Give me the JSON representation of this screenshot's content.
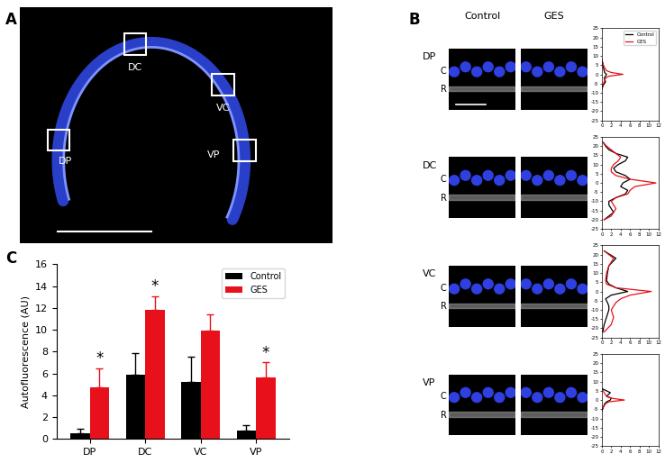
{
  "panel_labels": [
    "A",
    "B",
    "C"
  ],
  "panel_a": {
    "regions": [
      "DP",
      "DC",
      "VC",
      "VP"
    ]
  },
  "panel_b": {
    "columns": [
      "Control",
      "GES"
    ],
    "layer_labels": [
      "C",
      "R"
    ]
  },
  "chart_data": [
    {
      "type": "bar",
      "categories": [
        "DP",
        "DC",
        "VC",
        "VP"
      ],
      "y_label": "Autofluorescence (AU)",
      "ylim": [
        0,
        16
      ],
      "yticks": [
        0,
        2,
        4,
        6,
        8,
        10,
        12,
        14,
        16
      ],
      "legend": "upper right",
      "series": [
        {
          "name": "Control",
          "color": "#000000",
          "values": [
            0.5,
            5.9,
            5.2,
            0.8
          ],
          "errors": [
            0.4,
            2.0,
            2.3,
            0.5
          ]
        },
        {
          "name": "GES",
          "color": "#e8101a",
          "values": [
            4.7,
            11.8,
            9.9,
            5.6
          ],
          "errors": [
            1.8,
            1.3,
            1.5,
            1.4
          ]
        }
      ],
      "annotations": [
        {
          "text": "*",
          "category": "DP",
          "series": "GES"
        },
        {
          "text": "*",
          "category": "DC",
          "series": "GES"
        },
        {
          "text": "*",
          "category": "VP",
          "series": "GES"
        }
      ]
    },
    {
      "type": "line",
      "title": "DP",
      "orientation": "horizontal",
      "legend": "upper right",
      "xlim": [
        0,
        12
      ],
      "xticks": [
        0,
        2,
        4,
        6,
        8,
        10,
        12
      ],
      "ylim": [
        -25,
        25
      ],
      "yticks": [
        -25,
        -20,
        -15,
        -10,
        -5,
        0,
        5,
        10,
        15,
        20,
        25
      ],
      "y": [
        -8,
        -6,
        -4,
        -2,
        -1,
        0,
        1,
        2,
        4,
        6,
        8
      ],
      "series": [
        {
          "name": "Control",
          "color": "#000000",
          "values": [
            0,
            0.3,
            0.8,
            0.5,
            0.8,
            1.0,
            0.6,
            0.5,
            0.3,
            0.2,
            0
          ]
        },
        {
          "name": "GES",
          "color": "#e8101a",
          "values": [
            0,
            0.2,
            0.5,
            0.8,
            1.5,
            4.5,
            2.0,
            1.0,
            0.5,
            0.2,
            0
          ]
        }
      ]
    },
    {
      "type": "line",
      "title": "DC",
      "orientation": "horizontal",
      "xlim": [
        0,
        12
      ],
      "xticks": [
        0,
        2,
        4,
        6,
        8,
        10,
        12
      ],
      "ylim": [
        -25,
        25
      ],
      "yticks": [
        -25,
        -20,
        -15,
        -10,
        -5,
        0,
        5,
        10,
        15,
        20,
        25
      ],
      "y": [
        -20,
        -18,
        -16,
        -14,
        -12,
        -10,
        -8,
        -6,
        -4,
        -2,
        0,
        2,
        4,
        6,
        8,
        10,
        12,
        14,
        16,
        18,
        20,
        22
      ],
      "series": [
        {
          "name": "Control",
          "color": "#000000",
          "values": [
            0.5,
            1.5,
            2.5,
            2.0,
            1.5,
            1.5,
            3.0,
            5.0,
            5.5,
            4.0,
            4.5,
            6.0,
            5.0,
            3.0,
            2.5,
            3.5,
            5.0,
            5.5,
            3.0,
            1.5,
            0.8,
            0.3
          ]
        },
        {
          "name": "GES",
          "color": "#e8101a",
          "values": [
            0.5,
            2.0,
            2.5,
            3.0,
            2.5,
            2.0,
            3.0,
            5.5,
            6.0,
            7.0,
            11.5,
            6.0,
            3.0,
            2.0,
            2.0,
            2.5,
            3.5,
            4.0,
            3.0,
            2.0,
            1.0,
            0.3
          ]
        }
      ]
    },
    {
      "type": "line",
      "title": "VC",
      "orientation": "horizontal",
      "xlim": [
        0,
        12
      ],
      "xticks": [
        0,
        2,
        4,
        6,
        8,
        10,
        12
      ],
      "ylim": [
        -25,
        25
      ],
      "yticks": [
        -25,
        -20,
        -15,
        -10,
        -5,
        0,
        5,
        10,
        15,
        20,
        25
      ],
      "y": [
        -22,
        -18,
        -14,
        -10,
        -8,
        -6,
        -4,
        -2,
        0,
        2,
        4,
        6,
        10,
        14,
        18,
        22
      ],
      "series": [
        {
          "name": "Control",
          "color": "#000000",
          "values": [
            0.2,
            0.5,
            1.0,
            1.5,
            1.5,
            1.2,
            0.8,
            2.0,
            5.5,
            3.0,
            1.5,
            1.0,
            1.2,
            1.5,
            3.0,
            0.5
          ]
        },
        {
          "name": "GES",
          "color": "#e8101a",
          "values": [
            0.5,
            2.0,
            2.5,
            2.0,
            2.5,
            3.0,
            4.0,
            6.0,
            10.5,
            3.0,
            1.0,
            0.8,
            1.0,
            1.5,
            2.5,
            0.5
          ]
        }
      ]
    },
    {
      "type": "line",
      "title": "VP",
      "orientation": "horizontal",
      "xlim": [
        0,
        12
      ],
      "xticks": [
        0,
        2,
        4,
        6,
        8,
        10,
        12
      ],
      "ylim": [
        -25,
        25
      ],
      "yticks": [
        -25,
        -20,
        -15,
        -10,
        -5,
        0,
        5,
        10,
        15,
        20,
        25
      ],
      "y": [
        -6,
        -4,
        -2,
        -1,
        0,
        1,
        2,
        4,
        6
      ],
      "series": [
        {
          "name": "Control",
          "color": "#000000",
          "values": [
            0,
            0.3,
            0.6,
            1.0,
            1.8,
            2.0,
            1.0,
            1.8,
            0.2
          ]
        },
        {
          "name": "GES",
          "color": "#e8101a",
          "values": [
            0,
            0.3,
            0.8,
            1.5,
            4.8,
            2.0,
            1.0,
            0.5,
            0
          ]
        }
      ]
    }
  ]
}
